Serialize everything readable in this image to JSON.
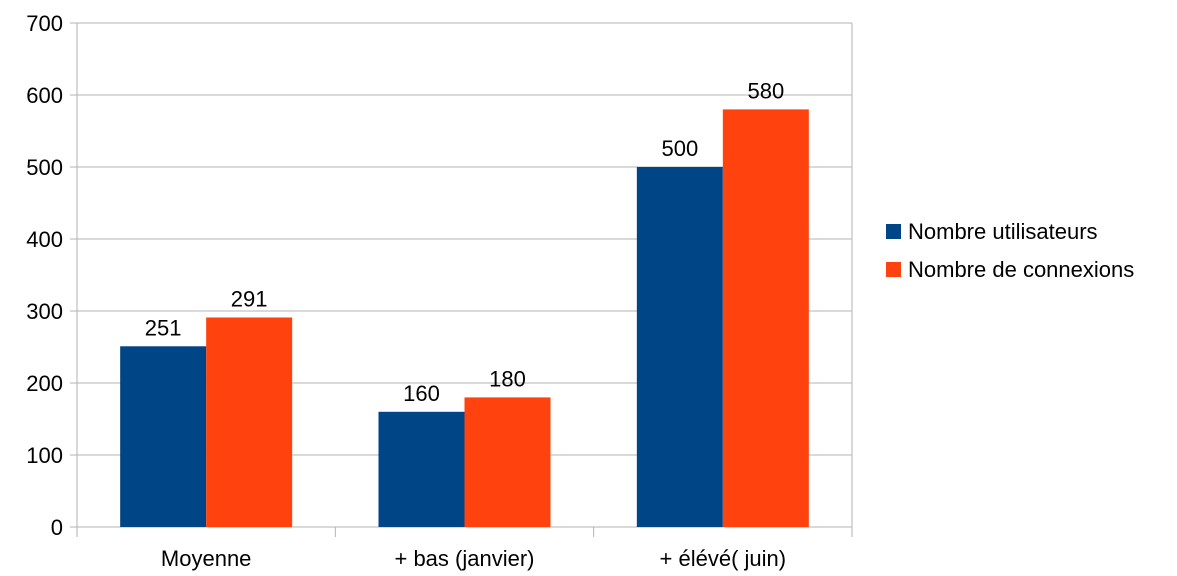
{
  "chart_data": {
    "type": "bar",
    "categories": [
      "Moyenne",
      "+ bas (janvier)",
      "+ élévé( juin)"
    ],
    "series": [
      {
        "name": "Nombre utilisateurs",
        "values": [
          251,
          160,
          500
        ],
        "color": "#004586"
      },
      {
        "name": "Nombre de connexions",
        "values": [
          291,
          180,
          580
        ],
        "color": "#ff420e"
      }
    ],
    "ylim": [
      0,
      700
    ],
    "yticks": [
      0,
      100,
      200,
      300,
      400,
      500,
      600,
      700
    ],
    "grid": true,
    "legend_position": "right",
    "title": "",
    "xlabel": "",
    "ylabel": ""
  }
}
